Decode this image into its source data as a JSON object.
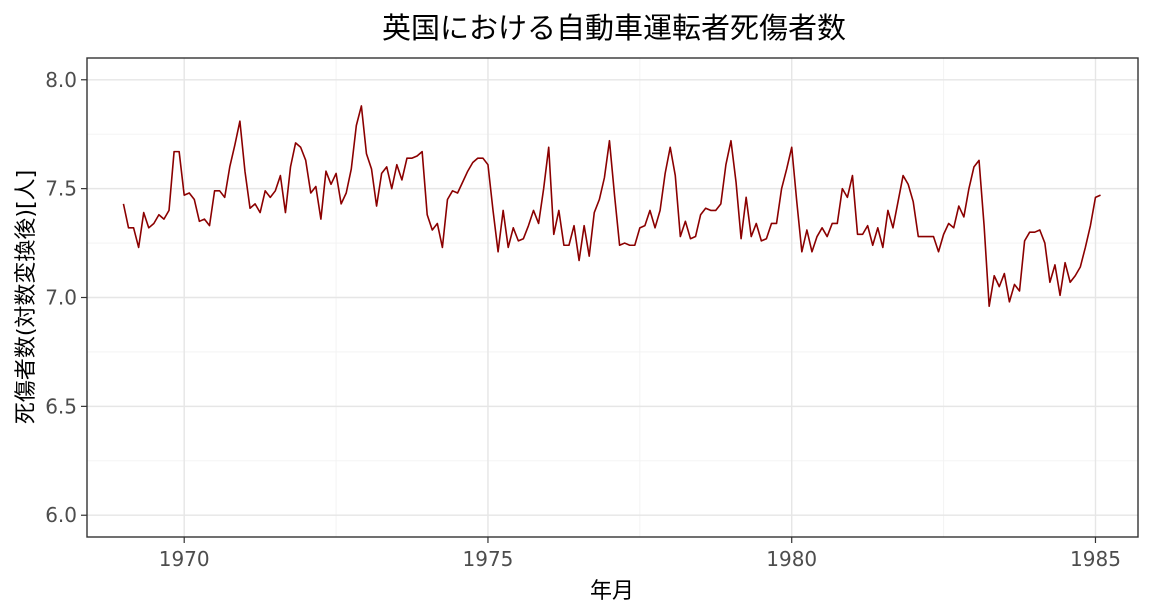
{
  "chart_data": {
    "type": "line",
    "title": "英国における自動車運転者死傷者数",
    "xlabel": "年月",
    "ylabel": "死傷者数(対数変換後)[人]",
    "xlim": [
      1968.4,
      1985.7
    ],
    "ylim": [
      5.9,
      8.1
    ],
    "x_ticks": [
      1970,
      1975,
      1980,
      1985
    ],
    "y_ticks": [
      6.0,
      6.5,
      7.0,
      7.5,
      8.0
    ],
    "x_tick_labels": [
      "1970",
      "1975",
      "1980",
      "1985"
    ],
    "y_tick_labels": [
      "6.0",
      "6.5",
      "7.0",
      "7.5",
      "8.0"
    ],
    "grid": true,
    "x_start": 1969.0,
    "x_step_months": 1,
    "series": [
      {
        "color": "#8b0000",
        "values": [
          7.43,
          7.32,
          7.32,
          7.23,
          7.39,
          7.32,
          7.34,
          7.38,
          7.36,
          7.4,
          7.67,
          7.67,
          7.47,
          7.48,
          7.45,
          7.35,
          7.36,
          7.33,
          7.49,
          7.49,
          7.46,
          7.6,
          7.7,
          7.81,
          7.58,
          7.41,
          7.43,
          7.39,
          7.49,
          7.46,
          7.49,
          7.56,
          7.39,
          7.6,
          7.71,
          7.69,
          7.63,
          7.48,
          7.51,
          7.36,
          7.58,
          7.52,
          7.57,
          7.43,
          7.48,
          7.59,
          7.79,
          7.88,
          7.66,
          7.59,
          7.42,
          7.57,
          7.6,
          7.5,
          7.61,
          7.54,
          7.64,
          7.64,
          7.65,
          7.67,
          7.38,
          7.31,
          7.34,
          7.23,
          7.45,
          7.49,
          7.48,
          7.53,
          7.58,
          7.62,
          7.64,
          7.64,
          7.61,
          7.4,
          7.21,
          7.4,
          7.23,
          7.32,
          7.26,
          7.27,
          7.33,
          7.4,
          7.34,
          7.5,
          7.69,
          7.29,
          7.4,
          7.24,
          7.24,
          7.33,
          7.17,
          7.33,
          7.19,
          7.39,
          7.45,
          7.55,
          7.72,
          7.47,
          7.24,
          7.25,
          7.24,
          7.24,
          7.32,
          7.33,
          7.4,
          7.32,
          7.4,
          7.57,
          7.69,
          7.56,
          7.28,
          7.35,
          7.27,
          7.28,
          7.38,
          7.41,
          7.4,
          7.4,
          7.43,
          7.61,
          7.72,
          7.53,
          7.27,
          7.46,
          7.28,
          7.34,
          7.26,
          7.27,
          7.34,
          7.34,
          7.5,
          7.59,
          7.69,
          7.44,
          7.21,
          7.31,
          7.21,
          7.28,
          7.32,
          7.28,
          7.34,
          7.34,
          7.5,
          7.46,
          7.56,
          7.29,
          7.29,
          7.33,
          7.24,
          7.32,
          7.23,
          7.4,
          7.32,
          7.44,
          7.56,
          7.52,
          7.44,
          7.28,
          7.28,
          7.28,
          7.28,
          7.21,
          7.29,
          7.34,
          7.32,
          7.42,
          7.37,
          7.5,
          7.6,
          7.63,
          7.33,
          6.96,
          7.1,
          7.05,
          7.11,
          6.98,
          7.06,
          7.03,
          7.26,
          7.3,
          7.3,
          7.31,
          7.25,
          7.07,
          7.15,
          7.01,
          7.16,
          7.07,
          7.1,
          7.14,
          7.23,
          7.33,
          7.46,
          7.47
        ]
      }
    ]
  }
}
